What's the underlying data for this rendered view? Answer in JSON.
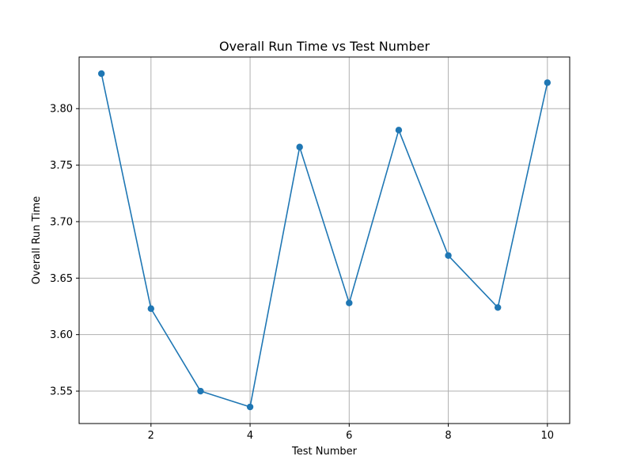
{
  "chart_data": {
    "type": "line",
    "title": "Overall Run Time vs Test Number",
    "xlabel": "Test Number",
    "ylabel": "Overall Run Time",
    "xlim": [
      0.55,
      10.45
    ],
    "ylim": [
      3.5213,
      3.8457
    ],
    "x_ticks": [
      2,
      4,
      6,
      8,
      10
    ],
    "y_ticks": [
      3.55,
      3.6,
      3.65,
      3.7,
      3.75,
      3.8
    ],
    "x_tick_labels": [
      "2",
      "4",
      "6",
      "8",
      "10"
    ],
    "y_tick_labels": [
      "3.55",
      "3.60",
      "3.65",
      "3.70",
      "3.75",
      "3.80"
    ],
    "grid": true,
    "series": [
      {
        "color": "#1f77b4",
        "marker": "circle",
        "x": [
          1,
          2,
          3,
          4,
          5,
          6,
          7,
          8,
          9,
          10
        ],
        "y": [
          3.831,
          3.623,
          3.55,
          3.536,
          3.766,
          3.628,
          3.781,
          3.67,
          3.624,
          3.823
        ]
      }
    ]
  }
}
